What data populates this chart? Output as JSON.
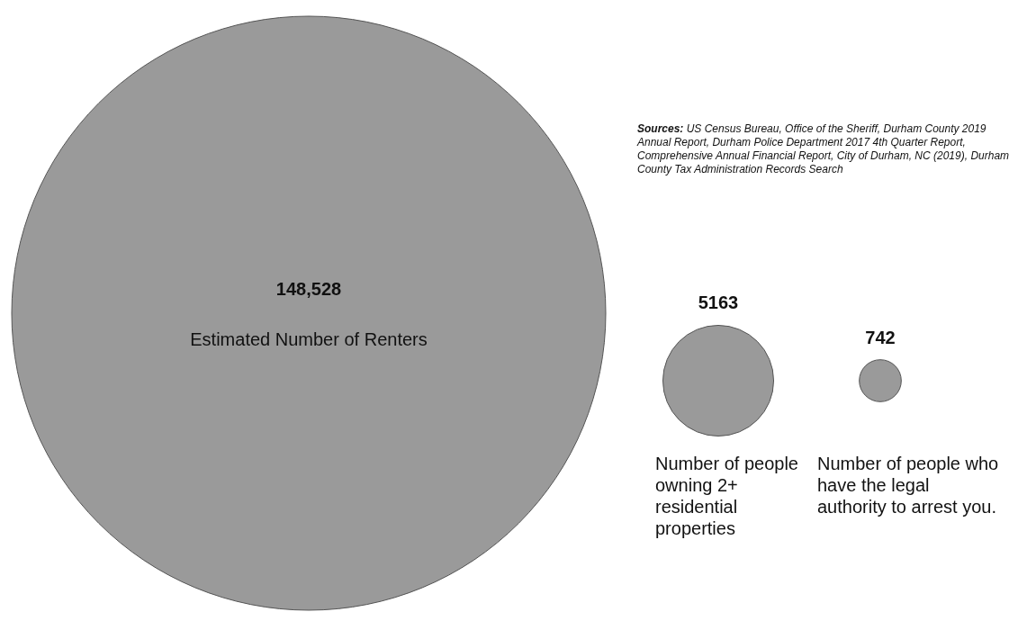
{
  "chart_data": {
    "type": "other",
    "categories": [
      "Estimated Number of Renters",
      "Number of people owning 2+ residential properties",
      "Number of people who have the legal authority to arrest you."
    ],
    "values": [
      148528,
      5163,
      742
    ],
    "value_labels": [
      "148,528",
      "5163",
      "742"
    ],
    "color": "#9a9a9a",
    "annotations": [
      "Sources: US Census Bureau, Office of the Sheriff, Durham County 2019 Annual Report, Durham Police Department 2017 4th Quarter Report, Comprehensive Annual Financial Report, City of Durham, NC (2019), Durham County Tax Administration Records Search"
    ]
  }
}
